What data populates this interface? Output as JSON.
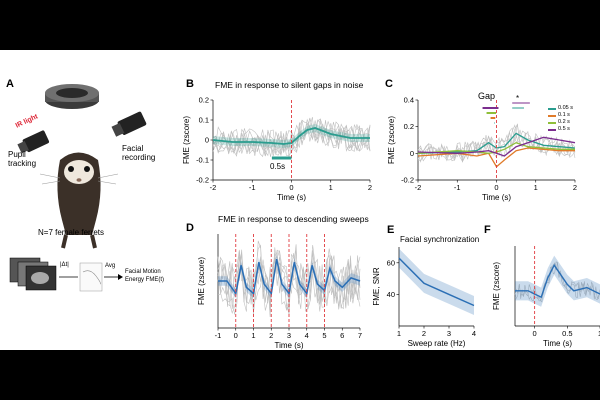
{
  "panels": {
    "A": {
      "label": "A",
      "ir_light": "IR light",
      "pupil_tracking": "Pupil\ntracking",
      "facial_recording": "Facial\nrecording",
      "n_animals": "N=7 female ferrets",
      "diff_label": "|Δt|",
      "avg_label": "Avg",
      "fme_label": "Facial Motion\nEnergy FME(t)"
    },
    "B": {
      "label": "B",
      "title": "FME in response to silent gaps in noise",
      "scalebar": "0.5s"
    },
    "C": {
      "label": "C",
      "gap_label": "Gap",
      "star": "*",
      "legend": [
        {
          "name": "0.05 s",
          "color": "#2a9d8f"
        },
        {
          "name": "0.1 s",
          "color": "#e07b2a"
        },
        {
          "name": "0.2 s",
          "color": "#8fbf3a"
        },
        {
          "name": "0.5 s",
          "color": "#7b2d8e"
        }
      ]
    },
    "DEF_title": "FME in response to descending sweeps",
    "D": {
      "label": "D"
    },
    "E": {
      "label": "E",
      "title": "Facial synchronization"
    },
    "F": {
      "label": "F"
    }
  },
  "colors": {
    "teal": "#2a9d8f",
    "blue": "#2b6fb5",
    "red_dash": "#e0393e",
    "gray": "#c0c0c0"
  },
  "chart_data": [
    {
      "id": "B",
      "type": "line",
      "xlabel": "Time (s)",
      "ylabel": "FME (zscore)",
      "xlim": [
        -2,
        2
      ],
      "ylim": [
        -0.2,
        0.2
      ],
      "xticks": [
        "-2",
        "-1",
        "0",
        "1",
        "2"
      ],
      "yticks": [
        "-0.2",
        "-0.1",
        "0",
        "0.1",
        "0.2"
      ],
      "event_x": [
        0
      ],
      "series": [
        {
          "name": "mean",
          "x": [
            -2,
            -1.5,
            -1,
            -0.5,
            -0.2,
            0,
            0.2,
            0.4,
            0.6,
            1,
            1.5,
            2
          ],
          "values": [
            0,
            -0.01,
            -0.01,
            -0.015,
            -0.02,
            -0.015,
            0.02,
            0.05,
            0.06,
            0.03,
            0.01,
            0.01
          ]
        }
      ]
    },
    {
      "id": "C",
      "type": "line",
      "xlabel": "Time (s)",
      "ylabel": "FME (zscore)",
      "xlim": [
        -2,
        2
      ],
      "ylim": [
        -0.2,
        0.4
      ],
      "xticks": [
        "-2",
        "-1",
        "0",
        "1",
        "2"
      ],
      "yticks": [
        "-0.2",
        "0",
        "0.2",
        "0.4"
      ],
      "event_x": [
        0
      ],
      "series": [
        {
          "name": "0.05 s",
          "x": [
            -2,
            -1,
            -0.5,
            -0.2,
            0,
            0.2,
            0.5,
            0.8,
            1.2,
            1.6,
            2
          ],
          "values": [
            0,
            0.01,
            0.02,
            0.08,
            0.04,
            0.05,
            0.15,
            0.1,
            0.06,
            0.05,
            0.04
          ]
        },
        {
          "name": "0.1 s",
          "x": [
            -2,
            -1,
            -0.5,
            -0.2,
            0,
            0.2,
            0.5,
            0.8,
            1.2,
            1.6,
            2
          ],
          "values": [
            -0.02,
            0,
            -0.02,
            0,
            -0.1,
            -0.05,
            0.02,
            0.04,
            0.03,
            0.02,
            0.02
          ]
        },
        {
          "name": "0.2 s",
          "x": [
            -2,
            -1,
            -0.5,
            -0.2,
            0,
            0.2,
            0.5,
            0.8,
            1.2,
            1.6,
            2
          ],
          "values": [
            0,
            0.02,
            0.01,
            0,
            0.01,
            0.03,
            0.08,
            0.05,
            0.04,
            0.03,
            0.03
          ]
        },
        {
          "name": "0.5 s",
          "x": [
            -2,
            -1,
            -0.5,
            -0.2,
            0,
            0.2,
            0.5,
            0.8,
            1.2,
            1.6,
            2
          ],
          "values": [
            0.01,
            0,
            0.01,
            0.02,
            0,
            -0.02,
            0.05,
            0.08,
            0.12,
            0.1,
            0.08
          ]
        }
      ]
    },
    {
      "id": "D",
      "type": "line",
      "xlabel": "Time (s)",
      "ylabel": "FME (zscore)",
      "xlim": [
        -1,
        7
      ],
      "ylim": [
        -0.15,
        0.15
      ],
      "xticks": [
        "-1",
        "0",
        "1",
        "2",
        "3",
        "4",
        "5",
        "6",
        "7"
      ],
      "event_x": [
        0,
        1,
        2,
        3,
        4,
        5
      ],
      "series": [
        {
          "name": "mean",
          "x": [
            -1,
            -0.5,
            0,
            0.3,
            0.6,
            1,
            1.3,
            1.6,
            2,
            2.3,
            2.6,
            3,
            3.3,
            3.6,
            4,
            4.3,
            4.6,
            5,
            5.3,
            5.6,
            6,
            6.5,
            7
          ],
          "values": [
            0,
            0,
            -0.04,
            0.05,
            -0.02,
            -0.04,
            0.06,
            -0.01,
            -0.04,
            0.07,
            -0.01,
            -0.04,
            0.06,
            -0.01,
            -0.04,
            0.05,
            -0.01,
            -0.03,
            0.04,
            0,
            -0.02,
            0.01,
            0
          ]
        }
      ]
    },
    {
      "id": "E",
      "type": "line",
      "xlabel": "Sweep rate (Hz)",
      "ylabel": "FME, SNR",
      "xlim": [
        1,
        4
      ],
      "ylim": [
        20,
        70
      ],
      "xticks": [
        "1",
        "2",
        "3",
        "4"
      ],
      "yticks": [
        "40",
        "60"
      ],
      "series": [
        {
          "name": "mean",
          "x": [
            1,
            2,
            3,
            4
          ],
          "values": [
            63,
            47,
            40,
            33
          ]
        }
      ]
    },
    {
      "id": "F",
      "type": "line",
      "xlabel": "Time (s)",
      "ylabel": "FME (zscore)",
      "xlim": [
        -0.3,
        1
      ],
      "ylim": [
        -0.1,
        0.15
      ],
      "xticks": [
        "0",
        "0.5",
        "1"
      ],
      "event_x": [
        0
      ],
      "series": [
        {
          "name": "mean",
          "x": [
            -0.3,
            -0.1,
            0,
            0.1,
            0.2,
            0.3,
            0.4,
            0.5,
            0.6,
            0.8,
            1
          ],
          "values": [
            0.01,
            0.01,
            0,
            -0.01,
            0.05,
            0.09,
            0.06,
            0.03,
            0.01,
            0.02,
            0
          ]
        }
      ]
    }
  ]
}
